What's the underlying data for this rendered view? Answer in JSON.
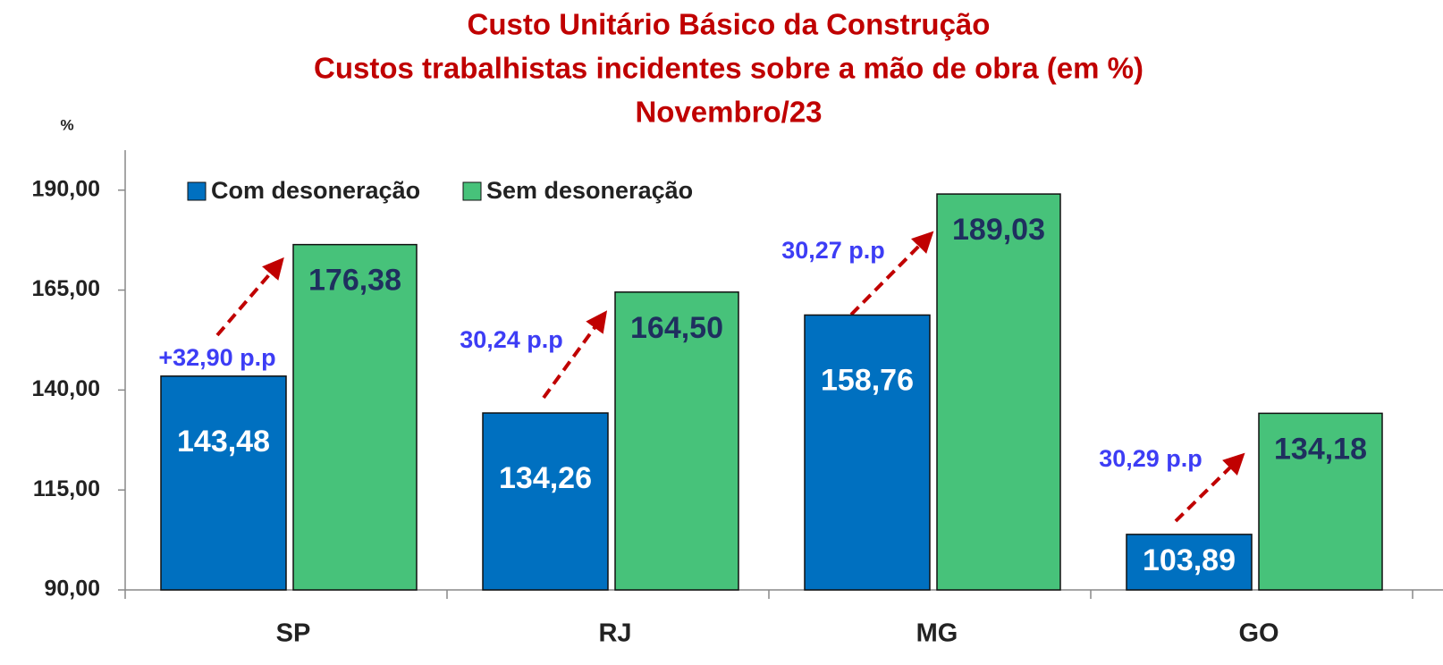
{
  "chart_data": {
    "type": "bar",
    "title": [
      "Custo Unitário Básico da Construção",
      "Custos trabalhistas incidentes sobre a mão de obra  (em %)",
      "Novembro/23"
    ],
    "y_label": "%",
    "categories": [
      "SP",
      "RJ",
      "MG",
      "GO"
    ],
    "series": [
      {
        "name": "Com desoneração",
        "color": "#0070c0",
        "values": [
          143.48,
          134.26,
          158.76,
          103.89
        ],
        "value_labels": [
          "143,48",
          "134,26",
          "158,76",
          "103,89"
        ]
      },
      {
        "name": "Sem desoneração",
        "color": "#47c27a",
        "values": [
          176.38,
          164.5,
          189.03,
          134.18
        ],
        "value_labels": [
          "176,38",
          "164,50",
          "189,03",
          "134,18"
        ]
      }
    ],
    "annotations": [
      "+32,90 p.p",
      "30,24 p.p",
      "30,27 p.p",
      "30,29 p.p"
    ],
    "ylim": [
      90,
      200
    ],
    "yticks": [
      {
        "value": 90,
        "label": "90,00"
      },
      {
        "value": 115,
        "label": "115,00"
      },
      {
        "value": 140,
        "label": "140,00"
      },
      {
        "value": 165,
        "label": "165,00"
      },
      {
        "value": 190,
        "label": "190,00"
      }
    ],
    "legend": "top-left",
    "grid": false
  }
}
